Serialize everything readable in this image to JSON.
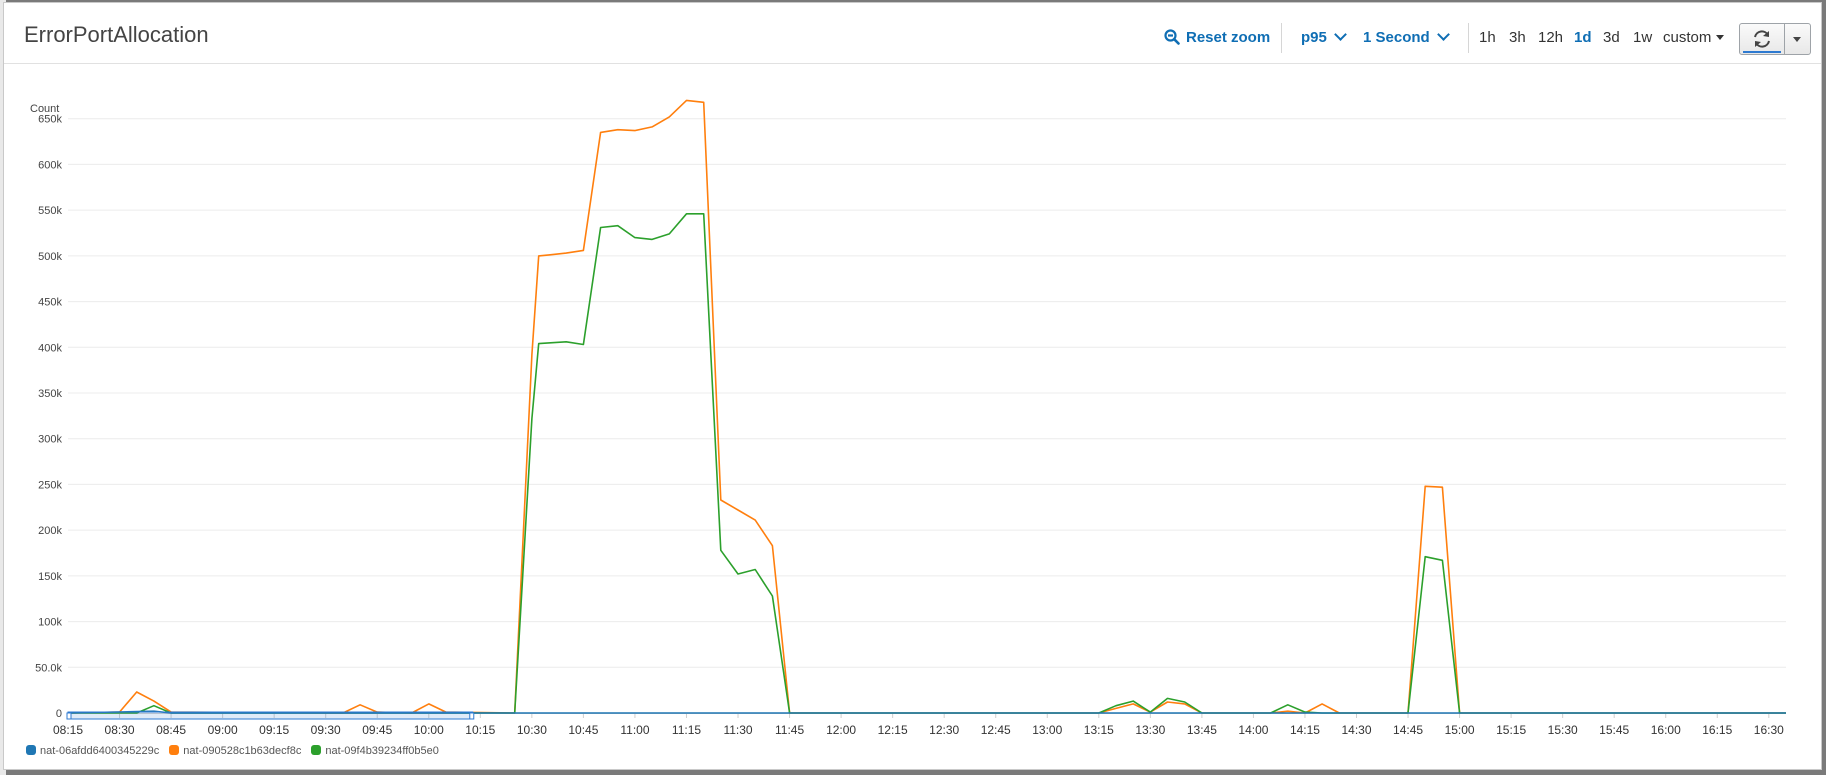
{
  "widget": {
    "title": "ErrorPortAllocation",
    "reset_zoom_label": "Reset zoom",
    "statistic": "p95",
    "period": "1 Second",
    "ranges": [
      "1h",
      "3h",
      "12h",
      "1d",
      "3d",
      "1w"
    ],
    "active_range": "1d",
    "custom_label": "custom",
    "icons": {
      "zoom": "zoom-out-icon",
      "refresh": "refresh-icon",
      "menu": "caret-down-icon"
    }
  },
  "chart_data": {
    "type": "line",
    "ylabel": "Count",
    "ylim": [
      0,
      700000
    ],
    "yticks": [
      0,
      50000,
      100000,
      150000,
      200000,
      250000,
      300000,
      350000,
      400000,
      450000,
      500000,
      550000,
      600000,
      650000
    ],
    "ytick_labels": [
      "0",
      "50.0k",
      "100k",
      "150k",
      "200k",
      "250k",
      "300k",
      "350k",
      "400k",
      "450k",
      "500k",
      "550k",
      "600k",
      "650k"
    ],
    "xlim": [
      "08:15",
      "16:35"
    ],
    "xtick_labels": [
      "08:15",
      "08:30",
      "08:45",
      "09:00",
      "09:15",
      "09:30",
      "09:45",
      "10:00",
      "10:15",
      "10:30",
      "10:45",
      "11:00",
      "11:15",
      "11:30",
      "11:45",
      "12:00",
      "12:15",
      "12:30",
      "12:45",
      "13:00",
      "13:15",
      "13:30",
      "13:45",
      "14:00",
      "14:15",
      "14:30",
      "14:45",
      "15:00",
      "15:15",
      "15:30",
      "15:45",
      "16:00",
      "16:15",
      "16:30"
    ],
    "grid": "horizontal",
    "legend_position": "bottom-left",
    "series": [
      {
        "name": "nat-06afdd6400345229c",
        "color": "#1f77b4",
        "points": [
          [
            "08:15",
            0
          ],
          [
            "08:40",
            2000
          ],
          [
            "08:45",
            0
          ],
          [
            "16:35",
            0
          ]
        ]
      },
      {
        "name": "nat-090528c1b63decf8c",
        "color": "#ff7f0e",
        "points": [
          [
            "08:15",
            0
          ],
          [
            "08:30",
            1000
          ],
          [
            "08:35",
            23000
          ],
          [
            "08:40",
            13000
          ],
          [
            "08:45",
            1000
          ],
          [
            "09:35",
            0
          ],
          [
            "09:40",
            9000
          ],
          [
            "09:45",
            1000
          ],
          [
            "09:55",
            0
          ],
          [
            "10:00",
            10000
          ],
          [
            "10:05",
            1000
          ],
          [
            "10:25",
            0
          ],
          [
            "10:30",
            392000
          ],
          [
            "10:32",
            500000
          ],
          [
            "10:35",
            501000
          ],
          [
            "10:40",
            503000
          ],
          [
            "10:45",
            506000
          ],
          [
            "10:50",
            635000
          ],
          [
            "10:55",
            638000
          ],
          [
            "11:00",
            637000
          ],
          [
            "11:05",
            641000
          ],
          [
            "11:10",
            652000
          ],
          [
            "11:15",
            670000
          ],
          [
            "11:20",
            668000
          ],
          [
            "11:25",
            233000
          ],
          [
            "11:30",
            222000
          ],
          [
            "11:35",
            211000
          ],
          [
            "11:40",
            183000
          ],
          [
            "11:45",
            0
          ],
          [
            "13:15",
            0
          ],
          [
            "13:20",
            5000
          ],
          [
            "13:25",
            10000
          ],
          [
            "13:30",
            1000
          ],
          [
            "13:35",
            12000
          ],
          [
            "13:40",
            10000
          ],
          [
            "13:45",
            0
          ],
          [
            "14:05",
            0
          ],
          [
            "14:10",
            2000
          ],
          [
            "14:15",
            0
          ],
          [
            "14:20",
            10000
          ],
          [
            "14:25",
            0
          ],
          [
            "14:45",
            0
          ],
          [
            "14:50",
            248000
          ],
          [
            "14:55",
            247000
          ],
          [
            "15:00",
            0
          ],
          [
            "16:35",
            0
          ]
        ]
      },
      {
        "name": "nat-09f4b39234ff0b5e0",
        "color": "#2ca02c",
        "points": [
          [
            "08:15",
            0
          ],
          [
            "08:35",
            0
          ],
          [
            "08:40",
            8000
          ],
          [
            "08:45",
            0
          ],
          [
            "10:25",
            0
          ],
          [
            "10:30",
            322000
          ],
          [
            "10:32",
            404000
          ],
          [
            "10:40",
            406000
          ],
          [
            "10:45",
            403000
          ],
          [
            "10:50",
            531000
          ],
          [
            "10:55",
            533000
          ],
          [
            "11:00",
            520000
          ],
          [
            "11:05",
            518000
          ],
          [
            "11:10",
            524000
          ],
          [
            "11:15",
            546000
          ],
          [
            "11:20",
            546000
          ],
          [
            "11:25",
            178000
          ],
          [
            "11:30",
            152000
          ],
          [
            "11:35",
            157000
          ],
          [
            "11:40",
            128000
          ],
          [
            "11:45",
            0
          ],
          [
            "13:15",
            0
          ],
          [
            "13:20",
            8000
          ],
          [
            "13:25",
            13000
          ],
          [
            "13:30",
            1000
          ],
          [
            "13:35",
            16000
          ],
          [
            "13:40",
            12000
          ],
          [
            "13:45",
            0
          ],
          [
            "14:05",
            0
          ],
          [
            "14:10",
            9000
          ],
          [
            "14:15",
            1000
          ],
          [
            "14:20",
            0
          ],
          [
            "14:45",
            0
          ],
          [
            "14:50",
            171000
          ],
          [
            "14:55",
            167000
          ],
          [
            "15:00",
            0
          ],
          [
            "16:35",
            0
          ]
        ]
      }
    ]
  }
}
